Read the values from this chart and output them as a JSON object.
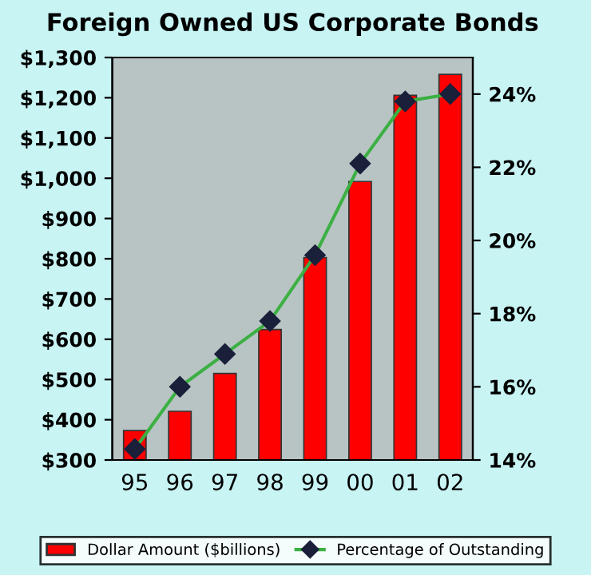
{
  "chart_data": {
    "type": "bar",
    "title": "Foreign Owned US Corporate Bonds",
    "categories": [
      "95",
      "96",
      "97",
      "98",
      "99",
      "00",
      "01",
      "02"
    ],
    "series": [
      {
        "name": "Dollar Amount ($billions)",
        "color": "#ff0000",
        "values": [
          373,
          421,
          515,
          624,
          803,
          992,
          1206,
          1258
        ]
      },
      {
        "name": "Percentage of Outstanding",
        "type": "line",
        "axis": "y2",
        "color": "#3cb043",
        "marker": "diamond",
        "values": [
          14.3,
          16.0,
          16.9,
          17.8,
          19.6,
          22.1,
          23.8,
          24.0
        ]
      }
    ],
    "ylim": [
      300,
      1300
    ],
    "yticks": [
      {
        "value": 300,
        "label": "$300"
      },
      {
        "value": 400,
        "label": "$400"
      },
      {
        "value": 500,
        "label": "$500"
      },
      {
        "value": 600,
        "label": "$600"
      },
      {
        "value": 700,
        "label": "$700"
      },
      {
        "value": 800,
        "label": "$800"
      },
      {
        "value": 900,
        "label": "$900"
      },
      {
        "value": 1000,
        "label": "$1,000"
      },
      {
        "value": 1100,
        "label": "$1,100"
      },
      {
        "value": 1200,
        "label": "$1,200"
      },
      {
        "value": 1300,
        "label": "$1,300"
      }
    ],
    "y2lim": [
      14,
      25
    ],
    "y2ticks": [
      {
        "value": 14,
        "label": "14%"
      },
      {
        "value": 16,
        "label": "16%"
      },
      {
        "value": 18,
        "label": "18%"
      },
      {
        "value": 20,
        "label": "20%"
      },
      {
        "value": 22,
        "label": "22%"
      },
      {
        "value": 24,
        "label": "24%"
      }
    ],
    "legend": "bottom",
    "grid": false
  }
}
